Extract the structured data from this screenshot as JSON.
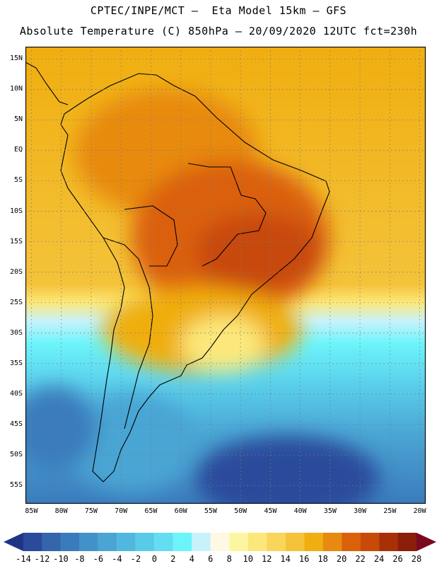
{
  "header": {
    "line1": "CPTEC/INPE/MCT –  Eta Model 15km – GFS",
    "line2": "Absolute Temperature (C) 850hPa – 20/09/2020 12UTC fct=230h"
  },
  "map": {
    "lat_ticks": [
      "15N",
      "10N",
      "5N",
      "EQ",
      "5S",
      "10S",
      "15S",
      "20S",
      "25S",
      "30S",
      "35S",
      "40S",
      "45S",
      "50S",
      "55S"
    ],
    "lat_values": [
      15,
      10,
      5,
      0,
      -5,
      -10,
      -15,
      -20,
      -25,
      -30,
      -35,
      -40,
      -45,
      -50,
      -55
    ],
    "lon_ticks": [
      "85W",
      "80W",
      "75W",
      "70W",
      "65W",
      "60W",
      "55W",
      "50W",
      "45W",
      "40W",
      "35W",
      "30W",
      "25W",
      "20W"
    ],
    "lon_values": [
      -85,
      -80,
      -75,
      -70,
      -65,
      -60,
      -55,
      -50,
      -45,
      -40,
      -35,
      -30,
      -25,
      -20
    ],
    "lat_range": [
      -58,
      17
    ],
    "lon_range": [
      -86,
      -19
    ]
  },
  "colorbar": {
    "labels": [
      "-14",
      "-12",
      "-10",
      "-8",
      "-6",
      "-4",
      "-2",
      "0",
      "2",
      "4",
      "6",
      "8",
      "10",
      "12",
      "14",
      "16",
      "18",
      "20",
      "22",
      "24",
      "26",
      "28"
    ],
    "colors": [
      "#2a4b9b",
      "#3565ab",
      "#3a7bbd",
      "#4391c9",
      "#4aa5d4",
      "#50b8df",
      "#58cbe9",
      "#62ddf2",
      "#6cf4fb",
      "#c8f2fb",
      "#fff8e4",
      "#fdf6a0",
      "#fce87a",
      "#f9d55a",
      "#f4c33a",
      "#f0ae10",
      "#e88a10",
      "#db6108",
      "#c84a08",
      "#a83006",
      "#8a1e08"
    ],
    "low_arrow_color": "#1e3585",
    "high_arrow_color": "#7a0a1e"
  }
}
